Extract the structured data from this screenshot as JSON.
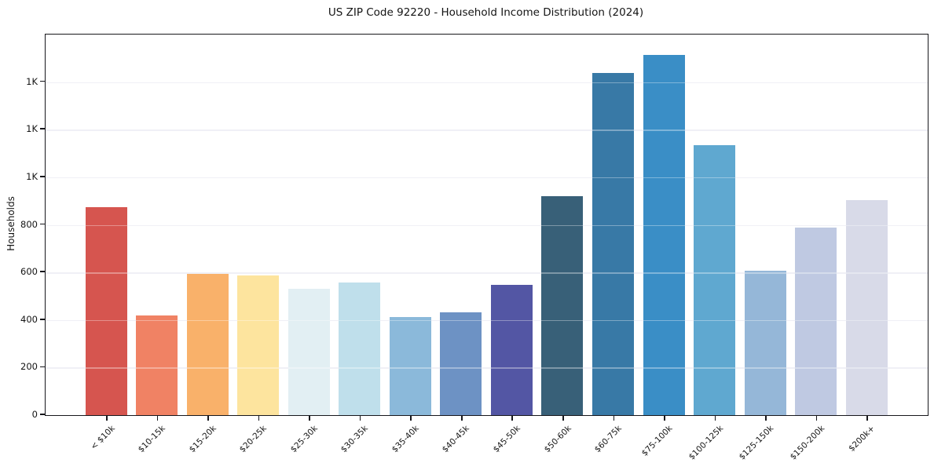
{
  "chart_data": {
    "type": "bar",
    "title": "US ZIP Code 92220 - Household Income Distribution (2024)",
    "xlabel": "",
    "ylabel": "Households",
    "categories": [
      "< $10k",
      "$10-15k",
      "$15-20k",
      "$20-25k",
      "$25-30k",
      "$30-35k",
      "$35-40k",
      "$40-45k",
      "$45-50k",
      "$50-60k",
      "$60-75k",
      "$75-100k",
      "$100-125k",
      "$125-150k",
      "$150-200k",
      "$200k+"
    ],
    "values": [
      875,
      420,
      593,
      588,
      532,
      557,
      411,
      431,
      549,
      922,
      1437,
      1515,
      1136,
      606,
      790,
      903
    ],
    "bar_colors": [
      "#d6554f",
      "#f08264",
      "#f9b16a",
      "#fde49e",
      "#e2eff3",
      "#bfdfeb",
      "#8bb9da",
      "#6d92c4",
      "#5356a4",
      "#386078",
      "#3879a6",
      "#3a8ec6",
      "#5fa8d0",
      "#95b7d8",
      "#bfc9e2",
      "#d8dae8"
    ],
    "ylim": [
      0,
      1600
    ],
    "yticks": {
      "values": [
        0,
        200,
        400,
        600,
        800,
        1000,
        1200,
        1400
      ],
      "labels": [
        "0",
        "200",
        "400",
        "600",
        "800",
        "1K",
        "1K",
        "1K"
      ]
    },
    "grid": "horizontal",
    "grid_color": "#e9e9f2",
    "spine_color": "#17171c",
    "background_color": "#ffffff",
    "legend": "none"
  }
}
